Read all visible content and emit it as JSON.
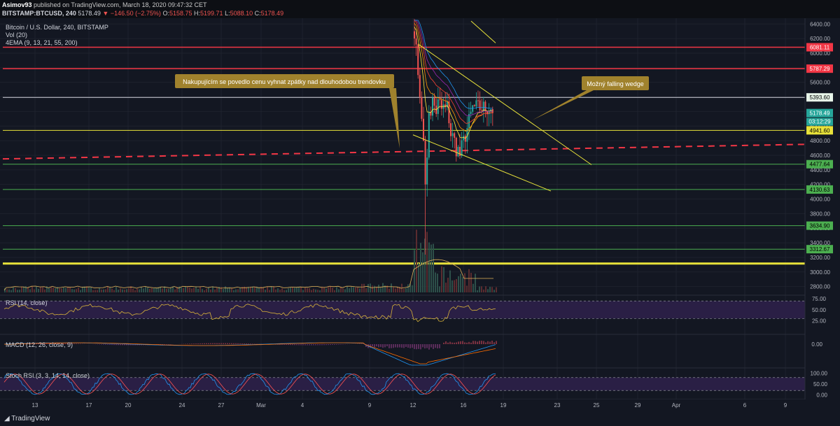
{
  "header": {
    "publisher": "Asimov93",
    "published_text": "published on TradingView.com, March 18, 2020 09:47:32 CET",
    "symbol": "BITSTAMP:BTCUSD, 240",
    "last": "5178.49",
    "change": "−146.50 (−2.75%)",
    "o_label": "O:",
    "o": "5158.75",
    "h_label": "H:",
    "h": "5199.71",
    "l_label": "L:",
    "l": "5088.10",
    "c_label": "C:",
    "c": "5178.49"
  },
  "legend": {
    "title": "Bitcoin / U.S. Dollar, 240, BITSTAMP",
    "vol": "Vol (20)",
    "ema": "4EMA (9, 13, 21, 55, 200)"
  },
  "annotations": {
    "left": "Nakupujícím se povedlo cenu vyhnat zpátky nad dlouhodobou trendovku",
    "right": "Možný falling wedge"
  },
  "footer": {
    "brand": "TradingView"
  },
  "colors": {
    "background": "#131722",
    "up": "#26a69a",
    "down": "#ef5350",
    "red_line": "#f23645",
    "yellow_line": "#e8e23a",
    "green_line": "#4caf50",
    "rsi_line": "#d8b33a",
    "macd_line": "#2196f3",
    "signal_line": "#ff6d00",
    "stoch_k": "#2196f3",
    "stoch_d": "#ff5252",
    "annotation_bg": "#a0822d"
  },
  "chart_data": [
    {
      "type": "candlestick",
      "title": "Bitcoin / U.S. Dollar, 240, BITSTAMP",
      "x_ticks": [
        "13",
        "17",
        "20",
        "24",
        "27",
        "Mar",
        "4",
        "9",
        "12",
        "16",
        "19",
        "23",
        "25",
        "29",
        "Apr",
        "6",
        "9"
      ],
      "y_ticks": [
        2800,
        3000,
        3200,
        3400,
        3600,
        3800,
        4000,
        4200,
        4400,
        4600,
        4800,
        5000,
        5200,
        5400,
        5600,
        5800,
        6000,
        6200,
        6400
      ],
      "ylim": [
        2720,
        6460
      ],
      "price_labels": [
        {
          "value": 6081.11,
          "text": "6081.11",
          "color": "#f23645"
        },
        {
          "value": 5787.29,
          "text": "5787.29",
          "color": "#f23645"
        },
        {
          "value": 5393.6,
          "text": "5393.60",
          "color": "#e8f5e9"
        },
        {
          "value": 5178.49,
          "text": "5178.49",
          "color": "#26a69a"
        },
        {
          "value": 4941.6,
          "text": "4941.60",
          "color": "#e8e23a"
        },
        {
          "value": 4477.64,
          "text": "4477.64",
          "color": "#4caf50"
        },
        {
          "value": 4130.63,
          "text": "4130.63",
          "color": "#4caf50"
        },
        {
          "value": 3634.9,
          "text": "3634.90",
          "color": "#4caf50"
        },
        {
          "value": 3312.67,
          "text": "3312.67",
          "color": "#4caf50"
        }
      ],
      "countdown": "03:12:29",
      "horizontal_levels": [
        {
          "value": 6081.11,
          "color": "#f23645",
          "width": 1.5
        },
        {
          "value": 5787.29,
          "color": "#f23645",
          "width": 1.5
        },
        {
          "value": 5393.6,
          "color": "#d1d4dc",
          "width": 1
        },
        {
          "value": 4941.6,
          "color": "#e8e23a",
          "width": 1
        },
        {
          "value": 4477.64,
          "color": "#4caf50",
          "width": 1
        },
        {
          "value": 4130.63,
          "color": "#4caf50",
          "width": 1
        },
        {
          "value": 3634.9,
          "color": "#4caf50",
          "width": 1
        },
        {
          "value": 3312.67,
          "color": "#4caf50",
          "width": 1
        },
        {
          "value": 3115,
          "color": "#e8e23a",
          "width": 3
        }
      ],
      "trendline_dashed": {
        "from": 4550,
        "to": 4750,
        "color": "#f23645"
      }
    },
    {
      "type": "line",
      "name": "RSI (14, close)",
      "y_ticks": [
        25.0,
        50.0,
        75.0
      ],
      "levels": [
        30,
        70
      ],
      "ylim": [
        10,
        80
      ]
    },
    {
      "type": "histogram",
      "name": "MACD (12, 26, close, 9)",
      "y_ticks": [
        "0.00"
      ]
    },
    {
      "type": "line",
      "name": "Stoch RSI (3, 3, 14, 14, close)",
      "y_ticks": [
        0.0,
        50.0,
        100.0
      ],
      "levels": [
        20,
        80
      ],
      "ylim": [
        -5,
        105
      ]
    }
  ]
}
